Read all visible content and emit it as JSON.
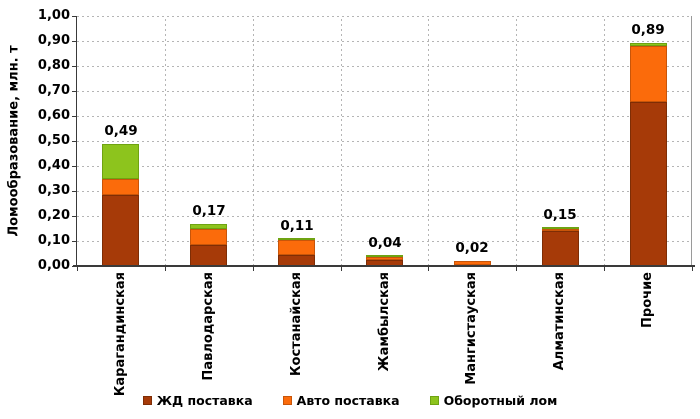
{
  "chart_data": {
    "type": "bar",
    "stacked": true,
    "title": "",
    "ylabel": "Ломообразование, млн. т",
    "xlabel": "",
    "ylim": [
      0,
      1.0
    ],
    "ytick_step": 0.1,
    "ytick_labels": [
      "1,00",
      "0,90",
      "0,80",
      "0,70",
      "0,60",
      "0,50",
      "0,40",
      "0,30",
      "0,20",
      "0,10",
      "0,00"
    ],
    "grid": true,
    "legend_position": "bottom",
    "categories": [
      "Карагандинская",
      "Павлодарская",
      "Костанайская",
      "Жамбылская",
      "Мангистауская",
      "Алматинская",
      "Прочие"
    ],
    "series": [
      {
        "name": "ЖД поставка",
        "color": "#A63A08",
        "border_color": "#7E2D05",
        "values": [
          0.285,
          0.085,
          0.045,
          0.025,
          0.004,
          0.14,
          0.655
        ]
      },
      {
        "name": "Авто поставка",
        "color": "#FB6B0B",
        "border_color": "#C85509",
        "values": [
          0.065,
          0.065,
          0.06,
          0.013,
          0.016,
          0.008,
          0.225
        ]
      },
      {
        "name": "Оборотный лом",
        "color": "#8DC41D",
        "border_color": "#6FA312",
        "values": [
          0.14,
          0.02,
          0.005,
          0.002,
          0.0,
          0.002,
          0.01
        ]
      }
    ],
    "totals": [
      0.49,
      0.17,
      0.11,
      0.04,
      0.02,
      0.15,
      0.89
    ],
    "total_labels": [
      "0,49",
      "0,17",
      "0,11",
      "0,04",
      "0,02",
      "0,15",
      "0,89"
    ]
  },
  "colors": {
    "axis": "#3a3a3a",
    "gridline": "#b5b5b5",
    "background": "#ffffff",
    "text": "#000000"
  }
}
